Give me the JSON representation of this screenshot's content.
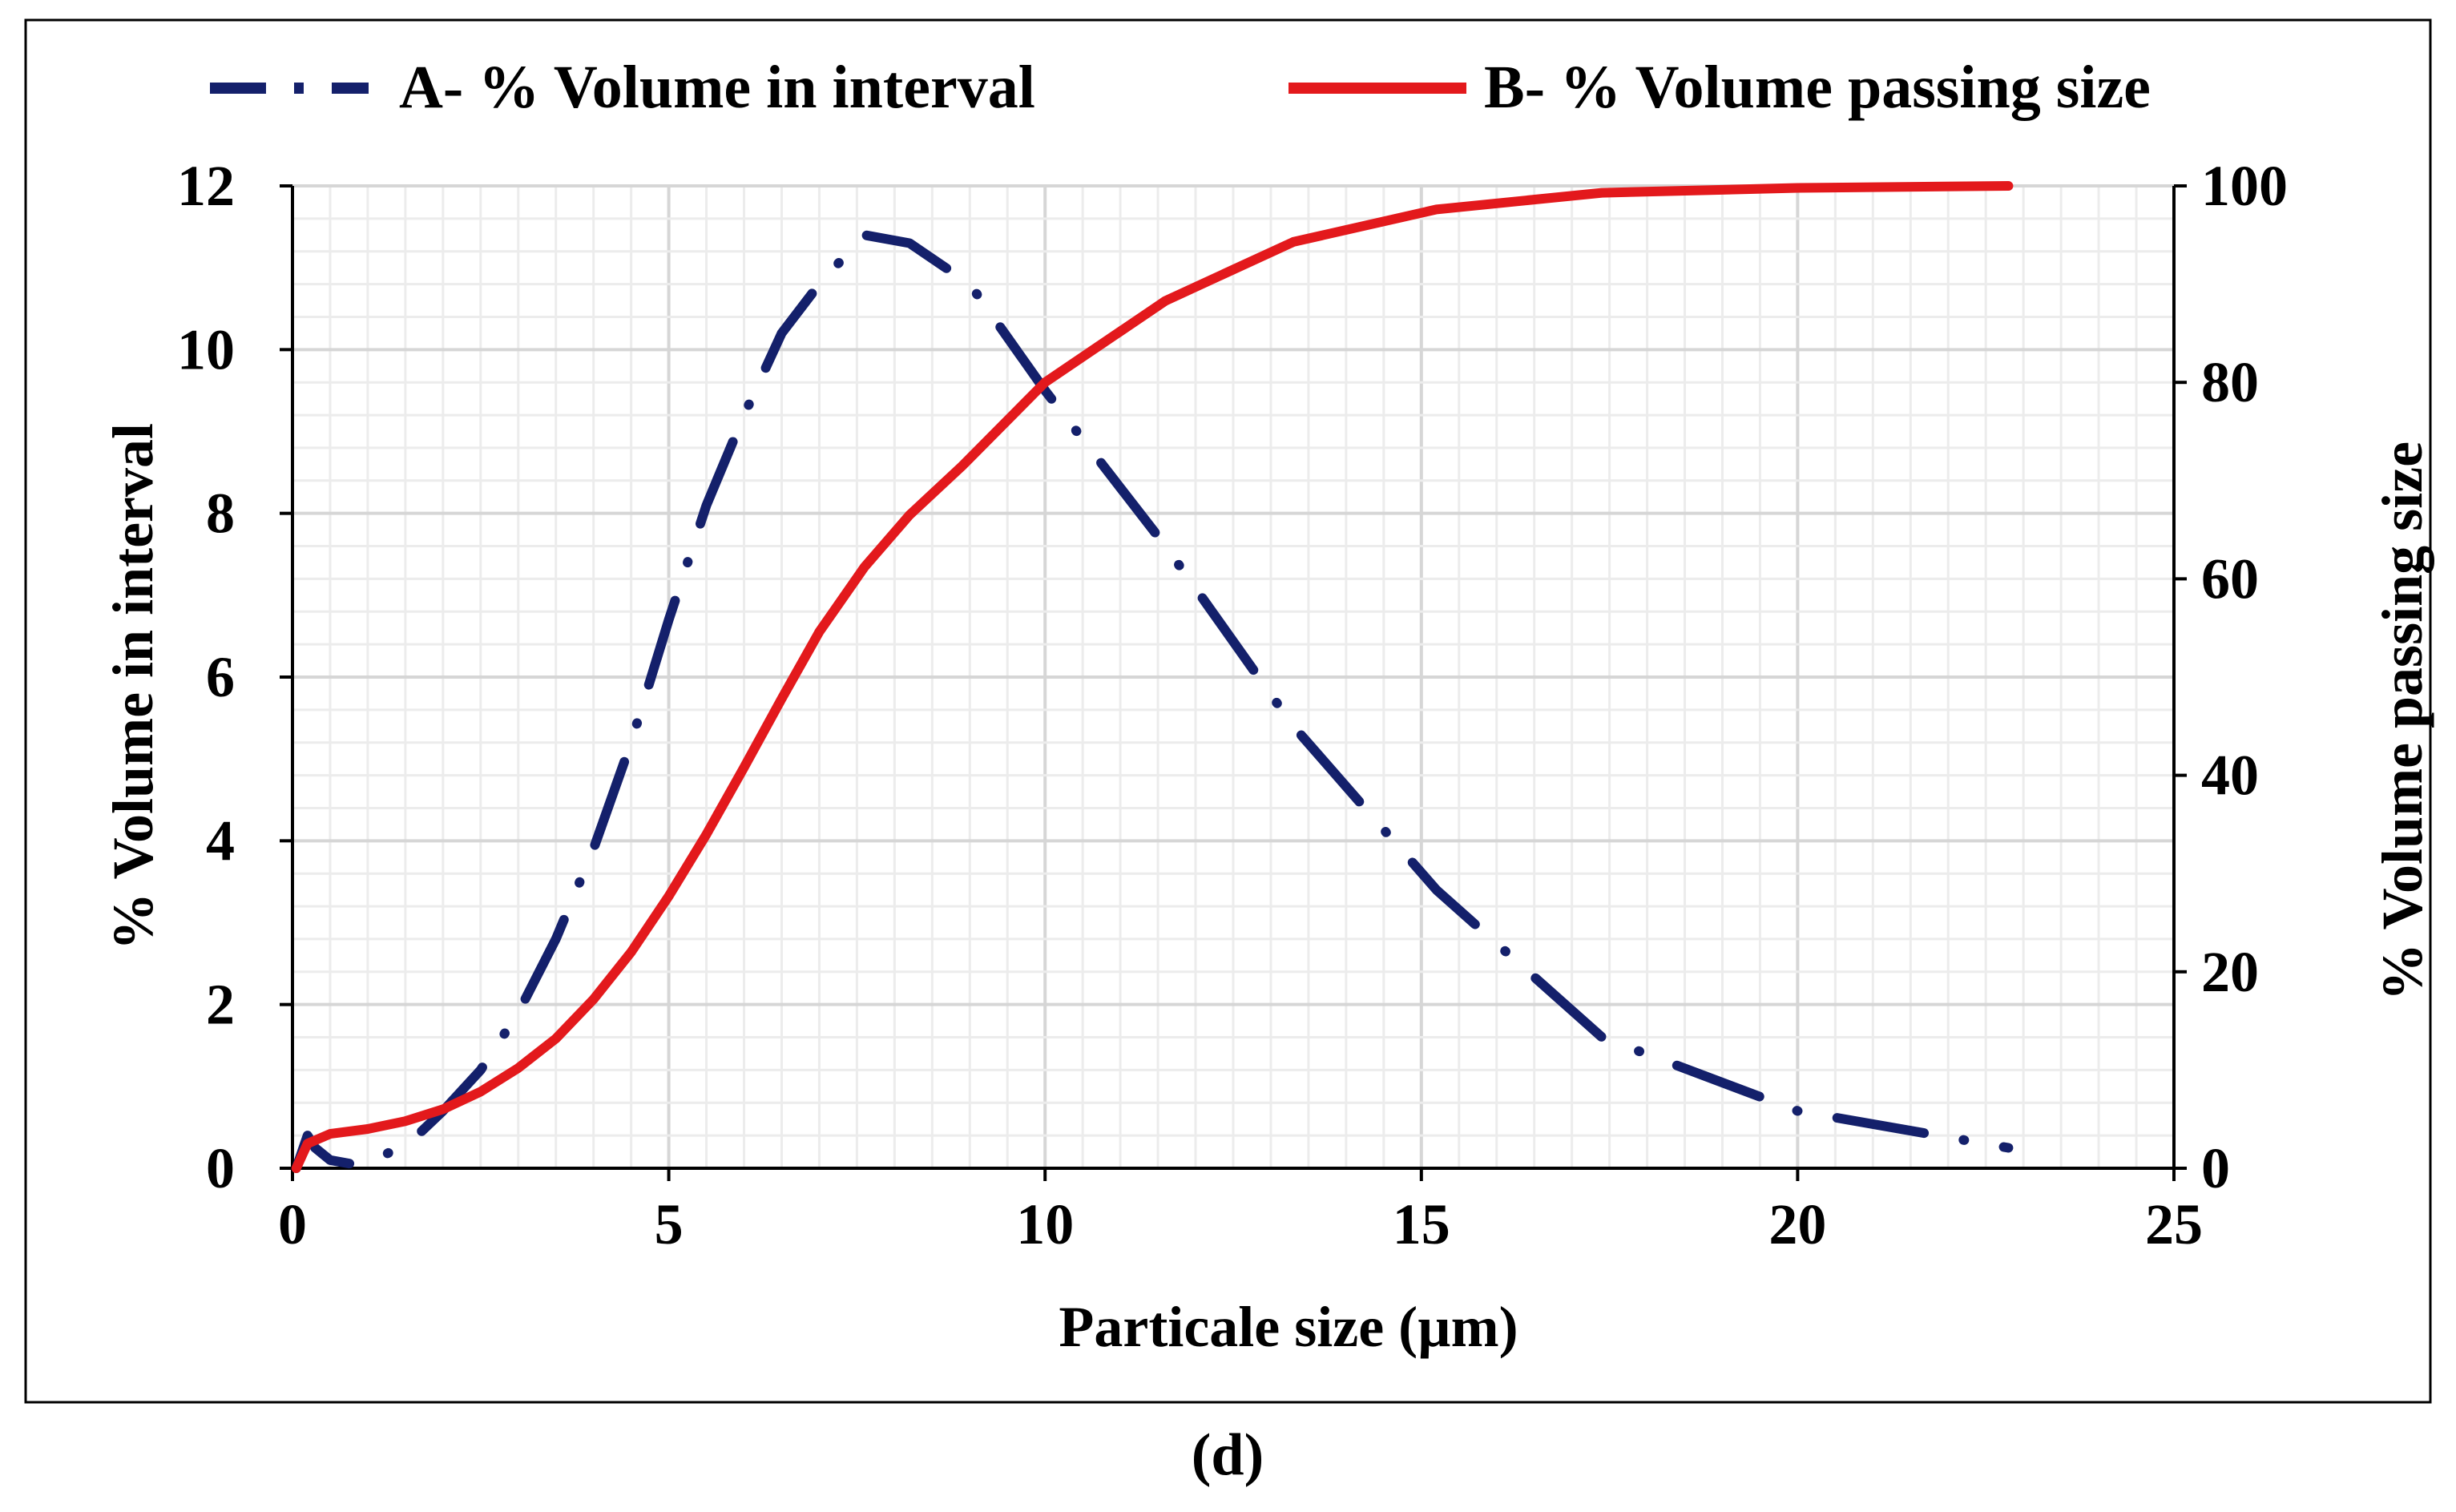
{
  "caption": "(d)",
  "colors": {
    "series_a": "#14206b",
    "series_b": "#e3191c",
    "major_grid": "#d6d6d6",
    "minor_grid": "#ececec",
    "axis": "#000000",
    "frame": "#000000"
  },
  "chart_data": {
    "type": "line",
    "title": "",
    "xlabel": "Particale size (µm)",
    "ylabel": "% Volume in interval",
    "y2label": "% Volume passing size",
    "xlim": [
      0,
      25
    ],
    "ylim": [
      0,
      12
    ],
    "y2lim": [
      0,
      100
    ],
    "xticks": [
      0,
      5,
      10,
      15,
      20,
      25
    ],
    "yticks": [
      0,
      2,
      4,
      6,
      8,
      10,
      12
    ],
    "y2ticks": [
      0,
      20,
      40,
      60,
      80,
      100
    ],
    "grid": true,
    "legend_position": "top",
    "series": [
      {
        "name": "A- % Volume in interval",
        "axis": "left",
        "style": "dash-dot",
        "x": [
          0.05,
          0.2,
          0.3,
          0.5,
          0.8,
          1.2,
          1.6,
          2.0,
          2.5,
          3.0,
          3.5,
          4.0,
          4.5,
          5.0,
          5.5,
          6.0,
          6.5,
          7.0,
          7.6,
          8.2,
          9.0,
          10.0,
          11.6,
          13.3,
          15.2,
          17.4,
          20.0,
          22.8
        ],
        "values": [
          0.0,
          0.4,
          0.25,
          0.1,
          0.05,
          0.15,
          0.35,
          0.7,
          1.2,
          1.9,
          2.8,
          3.9,
          5.2,
          6.7,
          8.1,
          9.2,
          10.2,
          10.8,
          11.4,
          11.3,
          10.8,
          9.5,
          7.6,
          5.4,
          3.4,
          1.6,
          0.7,
          0.25
        ]
      },
      {
        "name": "B- % Volume passing size",
        "axis": "right",
        "style": "solid",
        "x": [
          0.05,
          0.2,
          0.5,
          1.0,
          1.5,
          2.0,
          2.5,
          3.0,
          3.5,
          4.0,
          4.5,
          5.0,
          5.5,
          6.0,
          6.5,
          7.0,
          7.6,
          8.2,
          8.9,
          10.0,
          11.6,
          13.3,
          15.2,
          17.4,
          20.0,
          22.8
        ],
        "values": [
          0.0,
          2.5,
          3.5,
          4.0,
          4.8,
          6.0,
          7.8,
          10.2,
          13.2,
          17.2,
          22.0,
          27.7,
          34.0,
          40.8,
          47.8,
          54.6,
          61.2,
          66.5,
          71.5,
          80.0,
          88.3,
          94.3,
          97.6,
          99.3,
          99.8,
          100.0
        ]
      }
    ]
  }
}
